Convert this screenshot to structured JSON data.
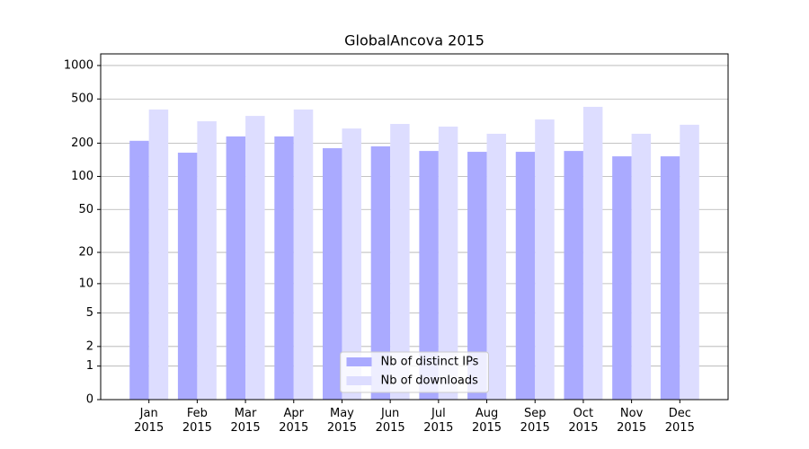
{
  "chart_data": {
    "type": "bar",
    "title": "GlobalAncova 2015",
    "categories": [
      "Jan 2015",
      "Feb 2015",
      "Mar 2015",
      "Apr 2015",
      "May 2015",
      "Jun 2015",
      "Jul 2015",
      "Aug 2015",
      "Sep 2015",
      "Oct 2015",
      "Nov 2015",
      "Dec 2015"
    ],
    "series": [
      {
        "name": "Nb of distinct IPs",
        "color": "#aaaaff",
        "values": [
          210,
          164,
          230,
          230,
          180,
          187,
          170,
          167,
          167,
          170,
          152,
          152
        ]
      },
      {
        "name": "Nb of downloads",
        "color": "#ddddff",
        "values": [
          402,
          315,
          352,
          402,
          271,
          298,
          282,
          243,
          327,
          425,
          243,
          293
        ]
      }
    ],
    "y_scale": "log1p",
    "ylim": [
      0,
      1272
    ],
    "yticks": [
      0,
      1,
      2,
      5,
      10,
      20,
      50,
      100,
      200,
      500,
      1000
    ],
    "grid": true,
    "legend": "lower center"
  }
}
